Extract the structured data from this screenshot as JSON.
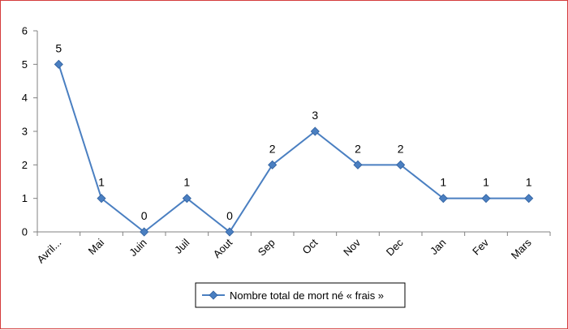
{
  "chart_data": {
    "type": "line",
    "categories": [
      "Avril...",
      "Mai",
      "Juin",
      "Juil",
      "Aout",
      "Sep",
      "Oct",
      "Nov",
      "Dec",
      "Jan",
      "Fev",
      "Mars"
    ],
    "series": [
      {
        "name": "Nombre total de mort né « frais »",
        "values": [
          5,
          1,
          0,
          1,
          0,
          2,
          3,
          2,
          2,
          1,
          1,
          1
        ],
        "color": "#4a7fc1"
      }
    ],
    "ylim": [
      0,
      6
    ],
    "yticks": [
      0,
      1,
      2,
      3,
      4,
      5,
      6
    ],
    "data_labels": true,
    "legend_position": "bottom",
    "grid": false,
    "axis_color": "#808080"
  }
}
